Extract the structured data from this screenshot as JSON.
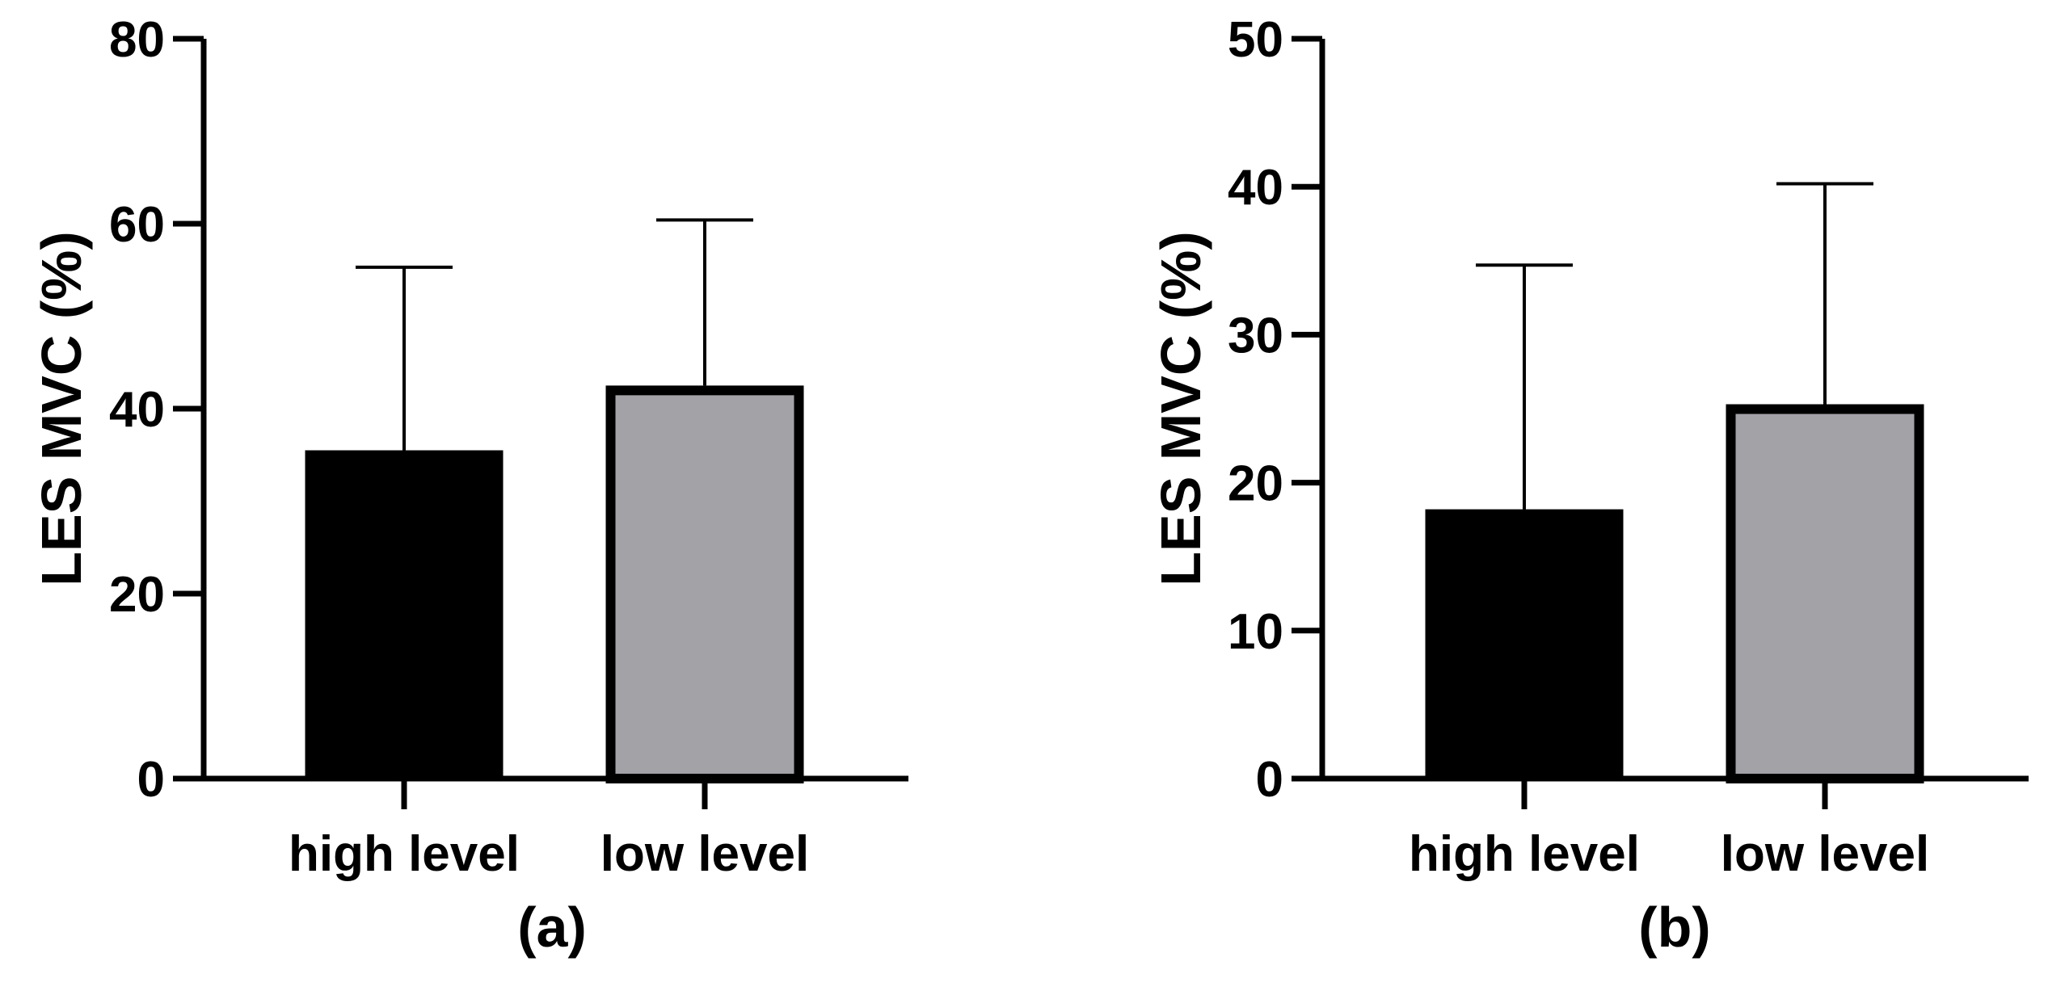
{
  "chart_data": [
    {
      "type": "bar",
      "panel_label": "(a)",
      "ylabel": "LES MVC (%)",
      "categories": [
        "high level",
        "low level"
      ],
      "values": [
        35.5,
        42.5
      ],
      "error_upper": [
        55.3,
        60.4
      ],
      "ylim": [
        0,
        80
      ],
      "yticks": [
        0,
        20,
        40,
        60,
        80
      ],
      "bar_fills": [
        "#000000",
        "#a3a2a7"
      ],
      "bar_outline": "#000000",
      "grid": false
    },
    {
      "type": "bar",
      "panel_label": "(b)",
      "ylabel": "LES MVC (%)",
      "categories": [
        "high level",
        "low level"
      ],
      "values": [
        18.2,
        25.3
      ],
      "error_upper": [
        34.7,
        40.2
      ],
      "ylim": [
        0,
        50
      ],
      "yticks": [
        0,
        10,
        20,
        30,
        40,
        50
      ],
      "bar_fills": [
        "#000000",
        "#a3a2a7"
      ],
      "bar_outline": "#000000",
      "grid": false
    }
  ]
}
